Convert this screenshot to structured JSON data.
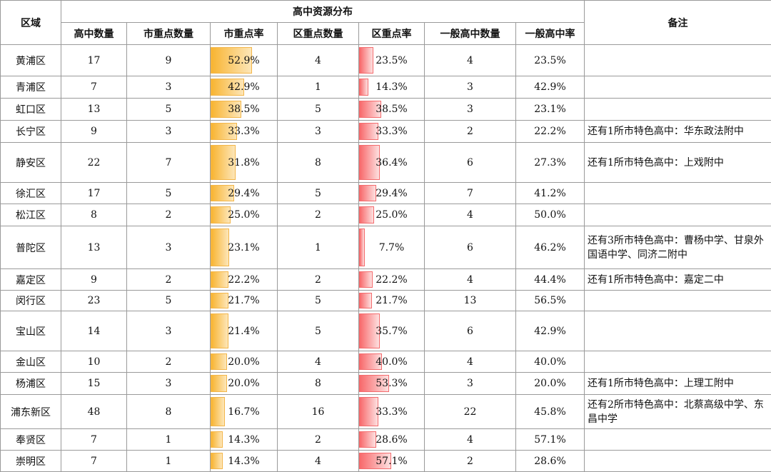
{
  "table": {
    "headers": {
      "region": "区域",
      "group": "高中资源分布",
      "note": "备注",
      "columns": [
        "高中数量",
        "市重点数量",
        "市重点率",
        "区重点数量",
        "区重点率",
        "一般高中数量",
        "一般高中率"
      ]
    },
    "rows": [
      {
        "region": "黄浦区",
        "count": 17,
        "city_key": 9,
        "city_rate": {
          "value": 52.9,
          "label": "52.9%"
        },
        "district_key": 4,
        "district_rate": {
          "value": 23.5,
          "label": "23.5%"
        },
        "general": 4,
        "general_rate": "23.5%"
      },
      {
        "region": "青浦区",
        "count": 7,
        "city_key": 3,
        "city_rate": {
          "value": 42.9,
          "label": "42.9%"
        },
        "district_key": 1,
        "district_rate": {
          "value": 14.3,
          "label": "14.3%"
        },
        "general": 3,
        "general_rate": "42.9%"
      },
      {
        "region": "虹口区",
        "count": 13,
        "city_key": 5,
        "city_rate": {
          "value": 38.5,
          "label": "38.5%"
        },
        "district_key": 5,
        "district_rate": {
          "value": 38.5,
          "label": "38.5%"
        },
        "general": 3,
        "general_rate": "23.1%"
      },
      {
        "region": "长宁区",
        "count": 9,
        "city_key": 3,
        "city_rate": {
          "value": 33.3,
          "label": "33.3%"
        },
        "district_key": 3,
        "district_rate": {
          "value": 33.3,
          "label": "33.3%"
        },
        "general": 2,
        "general_rate": "22.2%",
        "note": "还有1所市特色高中：华东政法附中"
      },
      {
        "region": "静安区",
        "count": 22,
        "city_key": 7,
        "city_rate": {
          "value": 31.8,
          "label": "31.8%"
        },
        "district_key": 8,
        "district_rate": {
          "value": 36.4,
          "label": "36.4%"
        },
        "general": 6,
        "general_rate": "27.3%",
        "note": "还有1所市特色高中：上戏附中"
      },
      {
        "region": "徐汇区",
        "count": 17,
        "city_key": 5,
        "city_rate": {
          "value": 29.4,
          "label": "29.4%"
        },
        "district_key": 5,
        "district_rate": {
          "value": 29.4,
          "label": "29.4%"
        },
        "general": 7,
        "general_rate": "41.2%"
      },
      {
        "region": "松江区",
        "count": 8,
        "city_key": 2,
        "city_rate": {
          "value": 25.0,
          "label": "25.0%"
        },
        "district_key": 2,
        "district_rate": {
          "value": 25.0,
          "label": "25.0%"
        },
        "general": 4,
        "general_rate": "50.0%"
      },
      {
        "region": "普陀区",
        "count": 13,
        "city_key": 3,
        "city_rate": {
          "value": 23.1,
          "label": "23.1%"
        },
        "district_key": 1,
        "district_rate": {
          "value": 7.7,
          "label": "7.7%"
        },
        "general": 6,
        "general_rate": "46.2%",
        "note": "还有3所市特色高中：曹杨中学、甘泉外国语中学、同济二附中"
      },
      {
        "region": "嘉定区",
        "count": 9,
        "city_key": 2,
        "city_rate": {
          "value": 22.2,
          "label": "22.2%"
        },
        "district_key": 2,
        "district_rate": {
          "value": 22.2,
          "label": "22.2%"
        },
        "general": 4,
        "general_rate": "44.4%",
        "note": "还有1所市特色高中：嘉定二中"
      },
      {
        "region": "闵行区",
        "count": 23,
        "city_key": 5,
        "city_rate": {
          "value": 21.7,
          "label": "21.7%"
        },
        "district_key": 5,
        "district_rate": {
          "value": 21.7,
          "label": "21.7%"
        },
        "general": 13,
        "general_rate": "56.5%"
      },
      {
        "region": "宝山区",
        "count": 14,
        "city_key": 3,
        "city_rate": {
          "value": 21.4,
          "label": "21.4%"
        },
        "district_key": 5,
        "district_rate": {
          "value": 35.7,
          "label": "35.7%"
        },
        "general": 6,
        "general_rate": "42.9%"
      },
      {
        "region": "金山区",
        "count": 10,
        "city_key": 2,
        "city_rate": {
          "value": 20.0,
          "label": "20.0%"
        },
        "district_key": 4,
        "district_rate": {
          "value": 40.0,
          "label": "40.0%"
        },
        "general": 4,
        "general_rate": "40.0%"
      },
      {
        "region": "杨浦区",
        "count": 15,
        "city_key": 3,
        "city_rate": {
          "value": 20.0,
          "label": "20.0%"
        },
        "district_key": 8,
        "district_rate": {
          "value": 53.3,
          "label": "53.3%"
        },
        "general": 3,
        "general_rate": "20.0%",
        "note": "还有1所市特色高中：上理工附中"
      },
      {
        "region": "浦东新区",
        "count": 48,
        "city_key": 8,
        "city_rate": {
          "value": 16.7,
          "label": "16.7%"
        },
        "district_key": 16,
        "district_rate": {
          "value": 33.3,
          "label": "33.3%"
        },
        "general": 22,
        "general_rate": "45.8%",
        "note": "还有2所市特色高中：北蔡高级中学、东昌中学"
      },
      {
        "region": "奉贤区",
        "count": 7,
        "city_key": 1,
        "city_rate": {
          "value": 14.3,
          "label": "14.3%"
        },
        "district_key": 2,
        "district_rate": {
          "value": 28.6,
          "label": "28.6%"
        },
        "general": 4,
        "general_rate": "57.1%"
      },
      {
        "region": "崇明区",
        "count": 7,
        "city_key": 1,
        "city_rate": {
          "value": 14.3,
          "label": "14.3%"
        },
        "district_key": 4,
        "district_rate": {
          "value": 57.1,
          "label": "57.1%"
        },
        "general": 2,
        "general_rate": "28.6%"
      }
    ]
  }
}
